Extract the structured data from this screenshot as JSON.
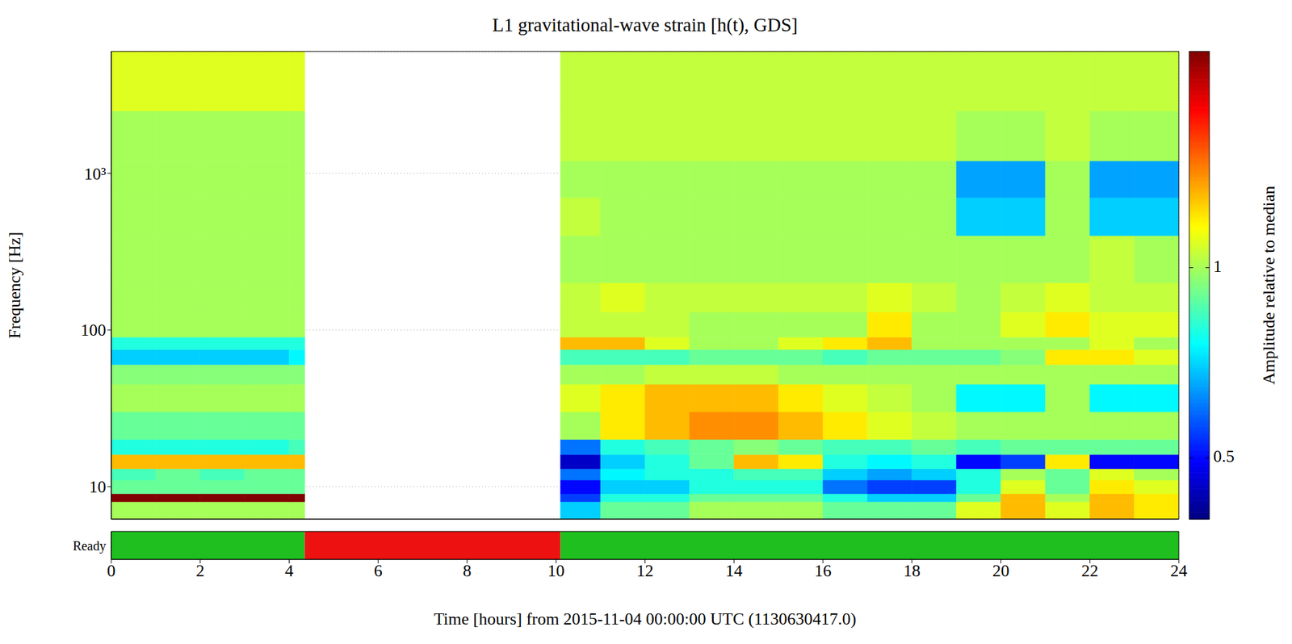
{
  "chart_data": {
    "type": "heatmap",
    "title": "L1 gravitational-wave strain [h(t), GDS]",
    "x_label": "Time [hours] from 2015-11-04 00:00:00 UTC (1130630417.0)",
    "y_label": "Frequency [Hz]",
    "xlim": [
      0,
      24
    ],
    "xticks": [
      0,
      2,
      4,
      6,
      8,
      10,
      12,
      14,
      16,
      18,
      20,
      22,
      24
    ],
    "ylim": [
      6.2,
      6000
    ],
    "yticks": [
      10,
      100,
      {
        "value": 1000,
        "label": "10³"
      }
    ],
    "log": "y",
    "grid": true,
    "time_bins": [
      0,
      1,
      2,
      3,
      4,
      4.35,
      10.1,
      11,
      12,
      13,
      14,
      15,
      16,
      17,
      18,
      19,
      20,
      21,
      22,
      23,
      24
    ],
    "frequency_bins": [
      6.2,
      8,
      9,
      11,
      13,
      16,
      20,
      30,
      45,
      60,
      75,
      90,
      130,
      200,
      400,
      700,
      1200,
      2500,
      6000
    ],
    "cells": [
      [
        1,
        1,
        1,
        1,
        1,
        null,
        0.7,
        0.9,
        0.9,
        1,
        1,
        1,
        0.9,
        0.9,
        0.9,
        1.1,
        1.3,
        1.1,
        1.3,
        1.2
      ],
      [
        2.2,
        2.2,
        2.2,
        2.2,
        2.2,
        null,
        0.55,
        0.8,
        0.8,
        0.9,
        0.9,
        0.9,
        0.8,
        0.7,
        0.7,
        0.9,
        1.3,
        1,
        1.3,
        1.2
      ],
      [
        0.9,
        0.9,
        0.9,
        0.9,
        0.9,
        null,
        0.5,
        0.7,
        0.7,
        0.8,
        0.8,
        0.8,
        0.6,
        0.55,
        0.55,
        0.8,
        1.1,
        0.9,
        1.2,
        1.1
      ],
      [
        0.85,
        0.9,
        0.85,
        0.9,
        0.9,
        null,
        0.6,
        0.75,
        0.8,
        0.8,
        0.85,
        0.85,
        0.7,
        0.65,
        0.7,
        0.8,
        1,
        0.9,
        1.1,
        1
      ],
      [
        1.3,
        1.3,
        1.3,
        1.3,
        1.3,
        null,
        0.45,
        0.7,
        0.8,
        0.9,
        1.3,
        1.2,
        0.8,
        0.75,
        0.8,
        0.5,
        0.55,
        1.2,
        0.5,
        0.5
      ],
      [
        0.8,
        0.8,
        0.8,
        0.8,
        0.85,
        null,
        0.6,
        0.8,
        0.85,
        0.9,
        0.95,
        0.9,
        0.85,
        0.85,
        0.9,
        0.85,
        0.9,
        0.9,
        0.9,
        0.9
      ],
      [
        0.9,
        0.9,
        0.9,
        0.9,
        0.9,
        null,
        1,
        1.2,
        1.3,
        1.4,
        1.4,
        1.3,
        1.2,
        1.1,
        1.05,
        1,
        1,
        1,
        1,
        1
      ],
      [
        1,
        1,
        1,
        1,
        1,
        null,
        1.1,
        1.2,
        1.3,
        1.3,
        1.3,
        1.2,
        1.1,
        1.05,
        1,
        0.75,
        0.75,
        1,
        0.75,
        0.75
      ],
      [
        0.95,
        0.95,
        0.95,
        0.95,
        0.95,
        null,
        1,
        1,
        1.05,
        1.05,
        1.05,
        1,
        1,
        1,
        1,
        1,
        1,
        1,
        1,
        1
      ],
      [
        0.7,
        0.7,
        0.7,
        0.7,
        0.75,
        null,
        0.85,
        0.85,
        0.85,
        0.9,
        0.9,
        0.9,
        0.85,
        0.9,
        0.9,
        0.9,
        0.95,
        1.2,
        1.2,
        1.1
      ],
      [
        0.8,
        0.8,
        0.8,
        0.8,
        0.8,
        null,
        1.3,
        1.3,
        1.1,
        1,
        1,
        1.1,
        1.2,
        1.3,
        1,
        1,
        1,
        1,
        1.1,
        1
      ],
      [
        1,
        1,
        1,
        1,
        1,
        null,
        1.05,
        1.05,
        1.05,
        1,
        1,
        1,
        1,
        1.2,
        1,
        1,
        1.1,
        1.2,
        1.1,
        1.1
      ],
      [
        1,
        1,
        1,
        1,
        1,
        null,
        1.05,
        1.1,
        1.05,
        1.05,
        1.05,
        1.05,
        1.05,
        1.1,
        1.05,
        1,
        1.05,
        1.1,
        1.05,
        1.05
      ],
      [
        1,
        1,
        1,
        1,
        1,
        null,
        1,
        1,
        1,
        1,
        1,
        1,
        1,
        1,
        1,
        1,
        1,
        1,
        1.05,
        1
      ],
      [
        1,
        1,
        1,
        1,
        1,
        null,
        1.05,
        1,
        1,
        1,
        1,
        1,
        1,
        1,
        1,
        0.7,
        0.7,
        1,
        0.7,
        0.7
      ],
      [
        1,
        1,
        1,
        1,
        1,
        null,
        1,
        1,
        1,
        1,
        1,
        1,
        1,
        1,
        1,
        0.65,
        0.65,
        1,
        0.65,
        0.65
      ],
      [
        1,
        1,
        1,
        1,
        1,
        null,
        1.05,
        1.05,
        1.05,
        1.05,
        1.05,
        1.05,
        1.05,
        1.05,
        1.05,
        1,
        1,
        1.05,
        1,
        1
      ],
      [
        1.1,
        1.1,
        1.1,
        1.1,
        1.1,
        null,
        1.05,
        1.05,
        1.05,
        1.05,
        1.05,
        1.05,
        1.05,
        1.05,
        1.05,
        1.05,
        1.05,
        1.05,
        1.05,
        1.05
      ]
    ],
    "colorbar": {
      "label": "Amplitude relative to median",
      "range": [
        0.4,
        2.2
      ],
      "ticks": [
        0.5,
        1
      ],
      "log": true
    },
    "state_bar": {
      "label": "Ready",
      "segments": [
        {
          "start": 0,
          "end": 4.35,
          "color": "#1fbf1f"
        },
        {
          "start": 4.35,
          "end": 10.1,
          "color": "#ee1111"
        },
        {
          "start": 10.1,
          "end": 24,
          "color": "#1fbf1f"
        }
      ]
    }
  }
}
